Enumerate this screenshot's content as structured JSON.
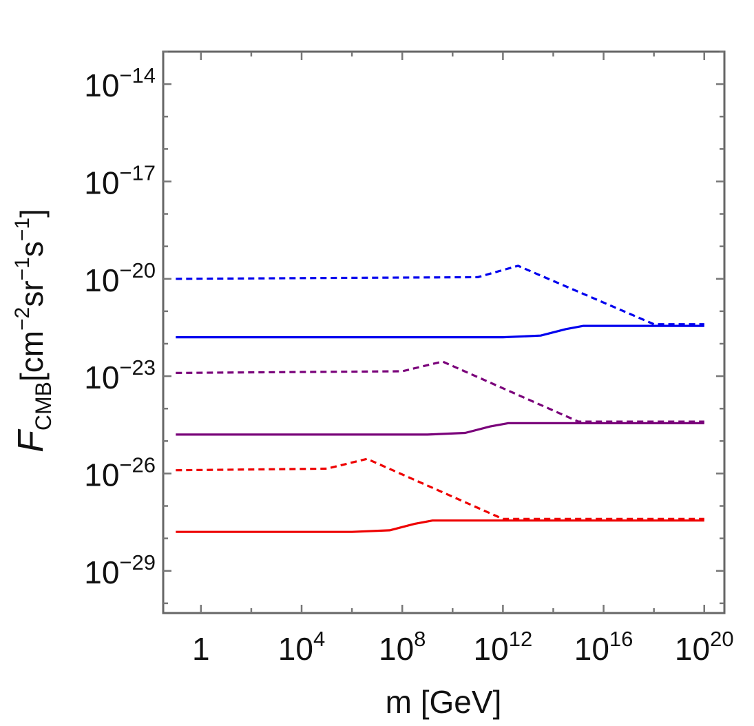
{
  "chart_data": {
    "type": "line",
    "title": "",
    "xlabel": "m [GeV]",
    "ylabel": {
      "prefix": "F",
      "subscript": "CMB",
      "unit_open": "[cm",
      "unit_exp1": "−2",
      "unit_mid": "sr",
      "unit_exp2": "−1",
      "unit_mid2": "s",
      "unit_exp3": "−1",
      "unit_close": "]"
    },
    "x_scale": "log10",
    "y_scale": "log10",
    "xlim_log10": [
      -1.5,
      20.8
    ],
    "ylim_log10": [
      -30.3,
      -13.0
    ],
    "x_ticks": [
      {
        "log10": 0,
        "base": "1",
        "exp": ""
      },
      {
        "log10": 4,
        "base": "10",
        "exp": "4"
      },
      {
        "log10": 8,
        "base": "10",
        "exp": "8"
      },
      {
        "log10": 12,
        "base": "10",
        "exp": "12"
      },
      {
        "log10": 16,
        "base": "10",
        "exp": "16"
      },
      {
        "log10": 20,
        "base": "10",
        "exp": "20"
      }
    ],
    "y_ticks": [
      {
        "log10": -14,
        "base": "10",
        "exp": "−14"
      },
      {
        "log10": -17,
        "base": "10",
        "exp": "−17"
      },
      {
        "log10": -20,
        "base": "10",
        "exp": "−20"
      },
      {
        "log10": -23,
        "base": "10",
        "exp": "−23"
      },
      {
        "log10": -26,
        "base": "10",
        "exp": "−26"
      },
      {
        "log10": -29,
        "base": "10",
        "exp": "−29"
      }
    ],
    "grid": false,
    "legend": "none",
    "series": [
      {
        "color": "#0000ee",
        "dash": "dotted",
        "x_log10": [
          -1,
          11,
          12.6,
          18,
          20
        ],
        "y_log10": [
          -20.0,
          -19.95,
          -19.6,
          -21.4,
          -21.4
        ]
      },
      {
        "color": "#0000ee",
        "dash": "solid",
        "x_log10": [
          -1,
          12,
          13.5,
          14.5,
          15.2,
          16,
          20
        ],
        "y_log10": [
          -21.8,
          -21.8,
          -21.75,
          -21.55,
          -21.45,
          -21.45,
          -21.45
        ]
      },
      {
        "color": "#7a007a",
        "dash": "dotted",
        "x_log10": [
          -1,
          8,
          9.6,
          15,
          20
        ],
        "y_log10": [
          -22.9,
          -22.85,
          -22.55,
          -24.4,
          -24.4
        ]
      },
      {
        "color": "#7a007a",
        "dash": "solid",
        "x_log10": [
          -1,
          9,
          10.5,
          11.5,
          12.2,
          13,
          20
        ],
        "y_log10": [
          -24.8,
          -24.8,
          -24.75,
          -24.55,
          -24.45,
          -24.45,
          -24.45
        ]
      },
      {
        "color": "#ee0000",
        "dash": "dotted",
        "x_log10": [
          -1,
          5,
          6.6,
          12,
          20
        ],
        "y_log10": [
          -25.9,
          -25.85,
          -25.55,
          -27.4,
          -27.4
        ]
      },
      {
        "color": "#ee0000",
        "dash": "solid",
        "x_log10": [
          -1,
          6,
          7.5,
          8.5,
          9.2,
          10,
          20
        ],
        "y_log10": [
          -27.8,
          -27.8,
          -27.75,
          -27.55,
          -27.45,
          -27.45,
          -27.45
        ]
      }
    ]
  }
}
